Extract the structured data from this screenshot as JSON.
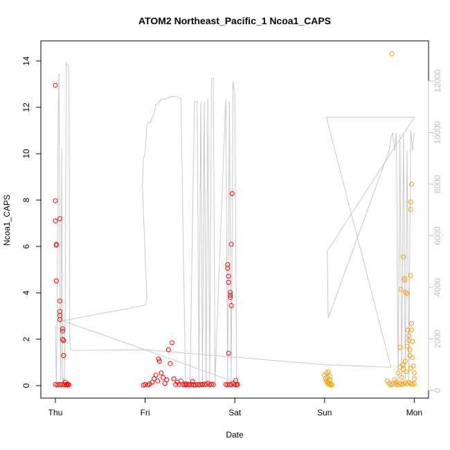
{
  "chart_data": {
    "type": "scatter",
    "title": "ATOM2 Northeast_Pacific_1 Ncoa1_CAPS",
    "xlabel": "Date",
    "ylabel": "Ncoa1_CAPS",
    "x_tick_labels": [
      "Thu",
      "Fri",
      "Sat",
      "Sun",
      "Mon"
    ],
    "xlim": [
      0,
      4.05
    ],
    "ylim": [
      0,
      14
    ],
    "y_ticks": [
      0,
      2,
      4,
      6,
      8,
      10,
      12,
      14
    ],
    "y2_ticks": [
      0,
      2000,
      4000,
      6000,
      8000,
      10000,
      12000
    ],
    "y2lim": [
      0,
      13000
    ],
    "grid": false,
    "colors": {
      "red_series": "#ff0000",
      "orange_series": "#ff9900",
      "line": "#c8c8c8"
    },
    "series": [
      {
        "marker": "circle-open",
        "color": "#ff0000",
        "points": [
          [
            0.0,
            12.95
          ],
          [
            0.0,
            7.97
          ],
          [
            0.0,
            7.1
          ],
          [
            0.01,
            6.1
          ],
          [
            0.01,
            6.05
          ],
          [
            0.01,
            4.52
          ],
          [
            0.05,
            3.65
          ],
          [
            0.05,
            3.2
          ],
          [
            0.05,
            3.02
          ],
          [
            0.05,
            2.85
          ],
          [
            0.08,
            2.45
          ],
          [
            0.08,
            2.35
          ],
          [
            0.08,
            2.0
          ],
          [
            0.09,
            1.95
          ],
          [
            0.09,
            1.3
          ],
          [
            0.05,
            7.2
          ],
          [
            0.0,
            0.05
          ],
          [
            0.02,
            0.03
          ],
          [
            0.04,
            0.05
          ],
          [
            0.06,
            0.04
          ],
          [
            0.08,
            0.06
          ],
          [
            0.1,
            0.03
          ],
          [
            0.11,
            0.15
          ],
          [
            0.12,
            0.05
          ],
          [
            0.13,
            0.04
          ],
          [
            0.14,
            0.06
          ],
          [
            0.15,
            0.04
          ],
          [
            0.98,
            0.02
          ],
          [
            1.0,
            0.05
          ],
          [
            1.03,
            0.03
          ],
          [
            1.05,
            0.08
          ],
          [
            1.08,
            0.15
          ],
          [
            1.1,
            0.3
          ],
          [
            1.12,
            0.45
          ],
          [
            1.14,
            0.2
          ],
          [
            1.15,
            1.15
          ],
          [
            1.16,
            1.05
          ],
          [
            1.18,
            0.55
          ],
          [
            1.2,
            0.35
          ],
          [
            1.22,
            0.1
          ],
          [
            1.24,
            0.25
          ],
          [
            1.26,
            1.55
          ],
          [
            1.28,
            0.95
          ],
          [
            1.3,
            1.85
          ],
          [
            1.32,
            0.3
          ],
          [
            1.34,
            0.05
          ],
          [
            1.36,
            0.15
          ],
          [
            1.38,
            0.05
          ],
          [
            1.4,
            0.2
          ],
          [
            1.42,
            0.05
          ],
          [
            1.44,
            0.03
          ],
          [
            1.45,
            0.08
          ],
          [
            1.46,
            0.04
          ],
          [
            1.48,
            0.06
          ],
          [
            1.5,
            0.03
          ],
          [
            1.52,
            0.05
          ],
          [
            1.53,
            0.18
          ],
          [
            1.54,
            0.04
          ],
          [
            1.56,
            0.02
          ],
          [
            1.58,
            0.05
          ],
          [
            1.6,
            0.03
          ],
          [
            1.62,
            0.06
          ],
          [
            1.64,
            0.04
          ],
          [
            1.66,
            0.07
          ],
          [
            1.68,
            0.05
          ],
          [
            1.7,
            0.1
          ],
          [
            1.72,
            0.04
          ],
          [
            1.74,
            0.06
          ],
          [
            1.76,
            0.05
          ],
          [
            1.92,
            5.22
          ],
          [
            1.92,
            5.05
          ],
          [
            1.93,
            4.72
          ],
          [
            1.93,
            4.45
          ],
          [
            1.95,
            4.02
          ],
          [
            1.95,
            3.9
          ],
          [
            1.95,
            3.8
          ],
          [
            1.96,
            3.45
          ],
          [
            1.96,
            6.1
          ],
          [
            1.97,
            8.28
          ],
          [
            1.93,
            1.4
          ],
          [
            1.9,
            0.05
          ],
          [
            1.92,
            0.03
          ],
          [
            1.94,
            0.06
          ],
          [
            1.96,
            0.04
          ],
          [
            1.98,
            0.1
          ],
          [
            2.0,
            0.05
          ],
          [
            2.01,
            0.22
          ],
          [
            2.02,
            0.04
          ],
          [
            2.03,
            0.05
          ]
        ]
      },
      {
        "marker": "circle-open",
        "color": "#ff9900",
        "points": [
          [
            3.0,
            0.45
          ],
          [
            3.01,
            0.3
          ],
          [
            3.02,
            0.55
          ],
          [
            3.02,
            0.2
          ],
          [
            3.03,
            0.1
          ],
          [
            3.03,
            0.35
          ],
          [
            3.04,
            0.6
          ],
          [
            3.04,
            0.15
          ],
          [
            3.05,
            0.05
          ],
          [
            3.06,
            0.25
          ],
          [
            3.06,
            0.4
          ],
          [
            3.07,
            0.08
          ],
          [
            3.07,
            0.05
          ],
          [
            3.08,
            0.02
          ],
          [
            3.78,
            0.25
          ],
          [
            3.8,
            0.15
          ],
          [
            3.82,
            0.55
          ],
          [
            3.84,
            1.65
          ],
          [
            3.84,
            0.8
          ],
          [
            3.85,
            4.15
          ],
          [
            3.86,
            0.35
          ],
          [
            3.87,
            0.9
          ],
          [
            3.88,
            0.7
          ],
          [
            3.88,
            5.55
          ],
          [
            3.89,
            4.62
          ],
          [
            3.89,
            4.55
          ],
          [
            3.9,
            4.02
          ],
          [
            3.9,
            1.05
          ],
          [
            3.91,
            0.6
          ],
          [
            3.92,
            1.7
          ],
          [
            3.92,
            3.98
          ],
          [
            3.93,
            2.4
          ],
          [
            3.94,
            2.15
          ],
          [
            3.94,
            1.95
          ],
          [
            3.95,
            1.55
          ],
          [
            3.95,
            1.3
          ],
          [
            3.96,
            0.75
          ],
          [
            3.96,
            4.75
          ],
          [
            3.96,
            7.6
          ],
          [
            3.96,
            7.92
          ],
          [
            3.97,
            8.68
          ],
          [
            3.97,
            2.68
          ],
          [
            3.97,
            2.4
          ],
          [
            3.98,
            1.9
          ],
          [
            3.98,
            1.2
          ],
          [
            3.99,
            0.85
          ],
          [
            4.0,
            0.55
          ],
          [
            4.0,
            0.3
          ],
          [
            3.75,
            14.3
          ],
          [
            3.8,
            0.05
          ],
          [
            3.82,
            0.04
          ],
          [
            3.84,
            0.1
          ],
          [
            3.86,
            0.06
          ],
          [
            3.88,
            0.08
          ],
          [
            3.9,
            0.12
          ],
          [
            3.92,
            0.07
          ],
          [
            3.94,
            0.15
          ],
          [
            3.96,
            0.1
          ],
          [
            3.98,
            0.05
          ],
          [
            4.0,
            0.08
          ],
          [
            3.7,
            0.2
          ],
          [
            3.72,
            0.1
          ],
          [
            3.74,
            0.04
          ],
          [
            3.76,
            0.06
          ]
        ]
      }
    ],
    "right_axis_line": {
      "color": "#c8c8c8",
      "points": [
        [
          0.0,
          2500
        ],
        [
          0.01,
          300
        ],
        [
          0.02,
          2700
        ],
        [
          0.03,
          10500
        ],
        [
          0.04,
          12300
        ],
        [
          0.05,
          2700
        ],
        [
          0.06,
          400
        ],
        [
          0.07,
          9400
        ],
        [
          0.08,
          300
        ],
        [
          0.09,
          500
        ],
        [
          0.1,
          300
        ],
        [
          0.11,
          3500
        ],
        [
          0.12,
          12700
        ],
        [
          0.14,
          12600
        ],
        [
          0.15,
          12400
        ],
        [
          0.16,
          2100
        ],
        [
          0.17,
          1600
        ],
        [
          0.2,
          1550
        ],
        [
          1.0,
          1580
        ],
        [
          0.08,
          2700
        ],
        [
          1.0,
          3300
        ],
        [
          1.02,
          3550
        ],
        [
          0.97,
          7900
        ],
        [
          0.98,
          9000
        ],
        [
          1.0,
          9200
        ],
        [
          1.02,
          10300
        ],
        [
          1.04,
          10400
        ],
        [
          1.06,
          10400
        ],
        [
          1.08,
          10600
        ],
        [
          1.1,
          10700
        ],
        [
          1.12,
          11100
        ],
        [
          1.14,
          11100
        ],
        [
          1.16,
          11200
        ],
        [
          1.18,
          11300
        ],
        [
          1.22,
          11300
        ],
        [
          1.3,
          11400
        ],
        [
          1.35,
          11400
        ],
        [
          1.4,
          11300
        ],
        [
          1.45,
          300
        ],
        [
          1.5,
          300
        ],
        [
          1.55,
          11200
        ],
        [
          1.56,
          11200
        ],
        [
          1.58,
          11200
        ],
        [
          1.6,
          300
        ],
        [
          1.62,
          11200
        ],
        [
          1.64,
          300
        ],
        [
          1.66,
          11200
        ],
        [
          1.68,
          300
        ],
        [
          1.7,
          11300
        ],
        [
          1.72,
          300
        ],
        [
          1.74,
          12100
        ],
        [
          1.76,
          12100
        ],
        [
          1.78,
          300
        ],
        [
          1.8,
          2400
        ],
        [
          1.9,
          11300
        ],
        [
          1.92,
          300
        ],
        [
          1.94,
          11200
        ],
        [
          1.96,
          300
        ],
        [
          1.98,
          12000
        ],
        [
          2.0,
          11500
        ],
        [
          2.02,
          300
        ],
        [
          1.0,
          1580
        ],
        [
          3.0,
          1000
        ],
        [
          3.74,
          900
        ],
        [
          3.02,
          10600
        ],
        [
          3.04,
          10600
        ],
        [
          3.06,
          10600
        ],
        [
          3.08,
          10600
        ],
        [
          4.0,
          10600
        ],
        [
          3.03,
          5400
        ],
        [
          3.04,
          2800
        ],
        [
          3.72,
          9300
        ],
        [
          3.74,
          9800
        ],
        [
          3.76,
          10000
        ],
        [
          3.78,
          9300
        ],
        [
          3.8,
          10000
        ],
        [
          3.82,
          400
        ],
        [
          3.84,
          9900
        ],
        [
          3.86,
          400
        ],
        [
          3.88,
          10000
        ],
        [
          3.9,
          400
        ],
        [
          3.92,
          9300
        ],
        [
          3.94,
          400
        ],
        [
          3.96,
          10100
        ],
        [
          3.98,
          9300
        ],
        [
          4.0,
          10000
        ]
      ]
    }
  }
}
